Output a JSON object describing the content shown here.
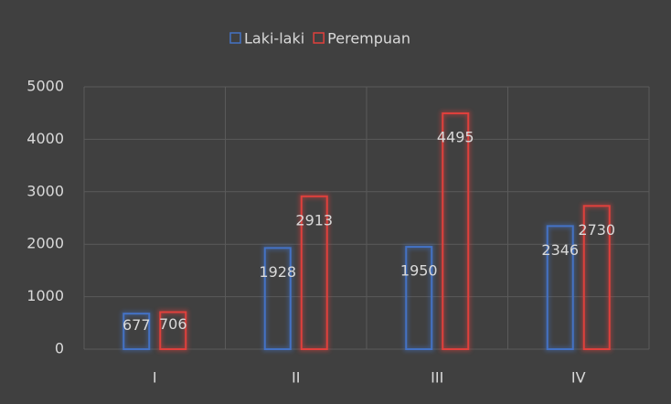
{
  "chart_data": {
    "type": "bar",
    "categories": [
      "I",
      "II",
      "III",
      "IV"
    ],
    "series": [
      {
        "name": "Laki-laki",
        "color": "#4472c4",
        "values": [
          677,
          1928,
          1950,
          2346
        ]
      },
      {
        "name": "Perempuan",
        "color": "#e0403c",
        "values": [
          706,
          2913,
          4495,
          2730
        ]
      }
    ],
    "ylim": [
      0,
      5000
    ],
    "yticks": [
      0,
      1000,
      2000,
      3000,
      4000,
      5000
    ],
    "grid": true,
    "legend": "top"
  }
}
